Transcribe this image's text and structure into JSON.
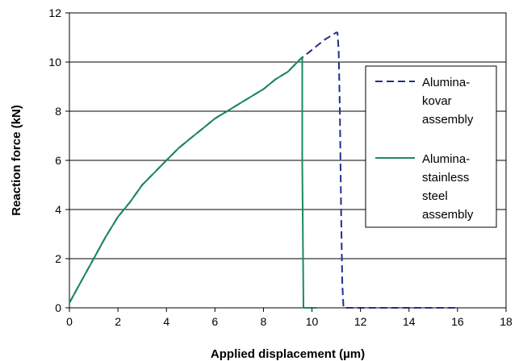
{
  "chart_data": {
    "type": "line",
    "title": "",
    "xlabel": "Applied displacement (µm)",
    "ylabel": "Reaction force (kN)",
    "xlim": [
      0,
      18
    ],
    "ylim": [
      0,
      12
    ],
    "x_ticks": [
      0,
      2,
      4,
      6,
      8,
      10,
      12,
      14,
      16,
      18
    ],
    "y_ticks": [
      0,
      2,
      4,
      6,
      8,
      10,
      12
    ],
    "grid": "horizontal",
    "legend_position": "right",
    "series": [
      {
        "name": "Alumina-kovar assembly",
        "legend_lines": [
          "Alumina-",
          "kovar",
          "assembly"
        ],
        "style": "dashed",
        "color": "#1f2f8f",
        "points": [
          [
            0,
            0.2
          ],
          [
            0.5,
            1.1
          ],
          [
            1,
            2.0
          ],
          [
            1.5,
            2.9
          ],
          [
            2,
            3.7
          ],
          [
            2.5,
            4.3
          ],
          [
            3,
            5.0
          ],
          [
            3.5,
            5.5
          ],
          [
            4,
            6.0
          ],
          [
            4.5,
            6.5
          ],
          [
            5,
            6.9
          ],
          [
            5.5,
            7.3
          ],
          [
            6,
            7.7
          ],
          [
            6.5,
            8.0
          ],
          [
            7,
            8.3
          ],
          [
            7.5,
            8.6
          ],
          [
            8,
            8.9
          ],
          [
            8.5,
            9.3
          ],
          [
            9,
            9.6
          ],
          [
            9.5,
            10.1
          ],
          [
            10,
            10.5
          ],
          [
            10.5,
            10.9
          ],
          [
            11,
            11.2
          ],
          [
            11.05,
            11.2
          ],
          [
            11.1,
            10.5
          ],
          [
            11.15,
            8.0
          ],
          [
            11.2,
            4.0
          ],
          [
            11.25,
            1.0
          ],
          [
            11.3,
            0
          ],
          [
            13,
            0
          ],
          [
            16,
            0
          ]
        ]
      },
      {
        "name": "Alumina-stainless steel assembly",
        "legend_lines": [
          "Alumina-",
          "stainless",
          "steel",
          "assembly"
        ],
        "style": "solid",
        "color": "#1a8a5a",
        "points": [
          [
            0,
            0.2
          ],
          [
            0.5,
            1.1
          ],
          [
            1,
            2.0
          ],
          [
            1.5,
            2.9
          ],
          [
            2,
            3.7
          ],
          [
            2.5,
            4.3
          ],
          [
            3,
            5.0
          ],
          [
            3.5,
            5.5
          ],
          [
            4,
            6.0
          ],
          [
            4.5,
            6.5
          ],
          [
            5,
            6.9
          ],
          [
            5.5,
            7.3
          ],
          [
            6,
            7.7
          ],
          [
            6.5,
            8.0
          ],
          [
            7,
            8.3
          ],
          [
            7.5,
            8.6
          ],
          [
            8,
            8.9
          ],
          [
            8.5,
            9.3
          ],
          [
            9,
            9.6
          ],
          [
            9.5,
            10.1
          ],
          [
            9.6,
            10.2
          ],
          [
            9.6,
            6.0
          ],
          [
            9.65,
            0
          ],
          [
            10.2,
            0
          ]
        ]
      }
    ]
  }
}
